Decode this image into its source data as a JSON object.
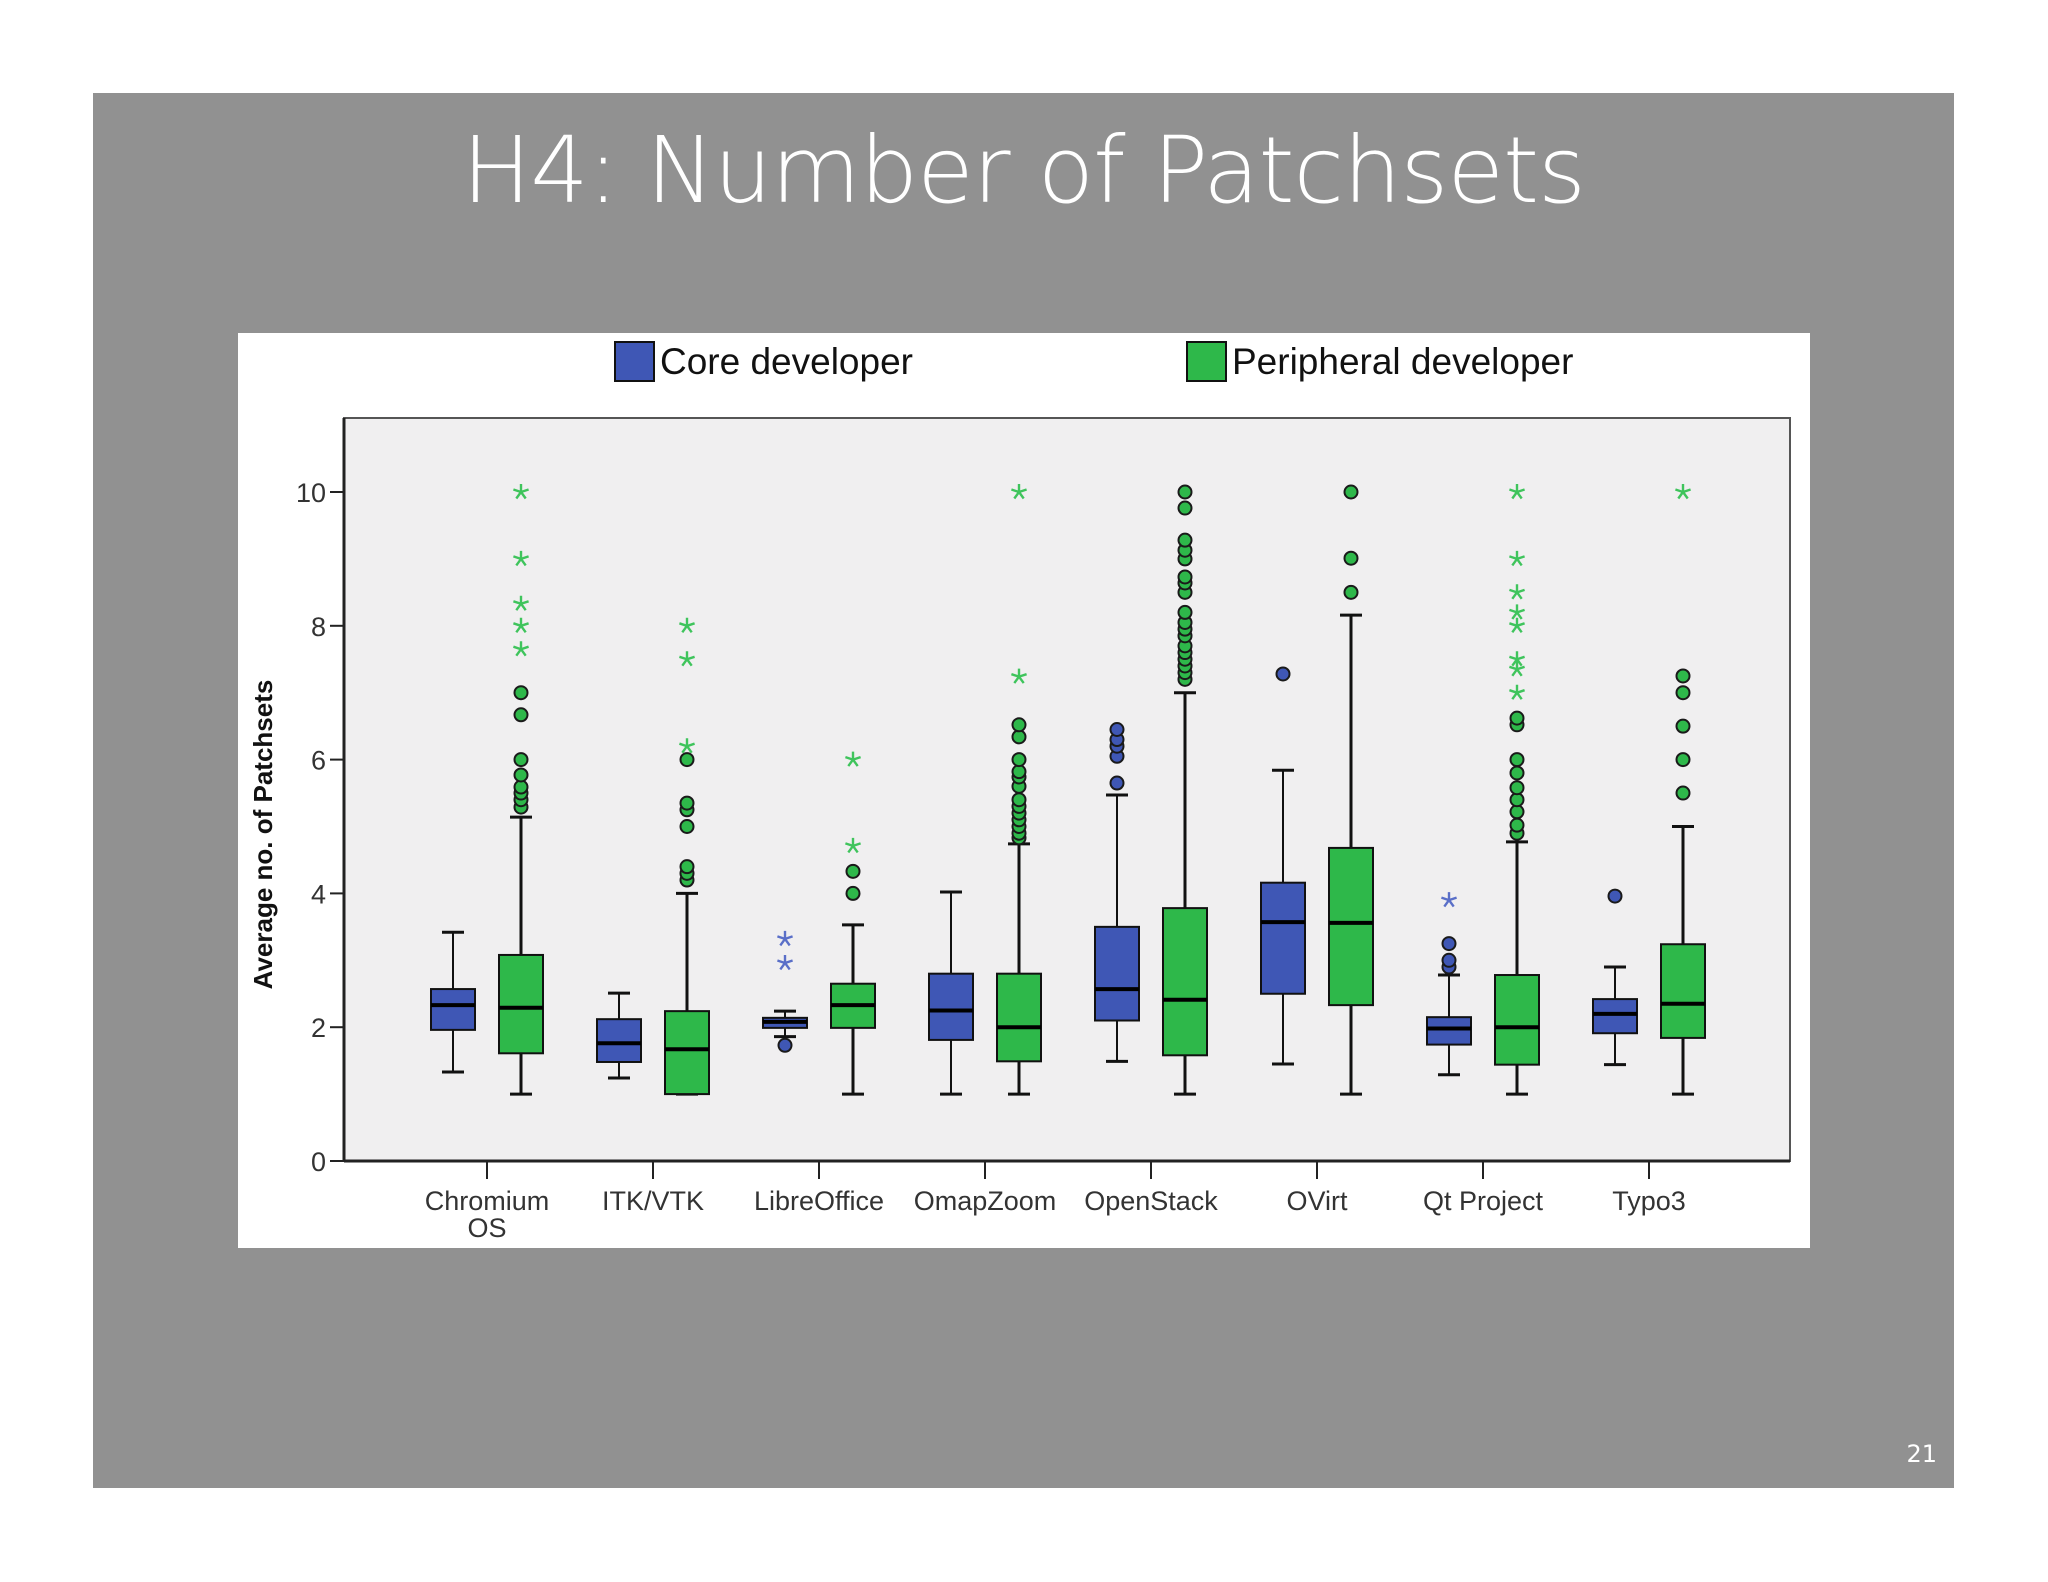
{
  "slide": {
    "title": "H4: Number of Patchsets",
    "number": "21"
  },
  "colors": {
    "slide_bg": "#919191",
    "core": "#3F57B5",
    "peripheral": "#2EB84A",
    "plot_bg": "#F0EFF0"
  },
  "chart_data": {
    "type": "boxplot",
    "title": "",
    "xlabel": "",
    "ylabel": "Average no. of Patchsets",
    "ylim": [
      0,
      11
    ],
    "yticks": [
      0,
      2,
      4,
      6,
      8,
      10
    ],
    "legend": [
      "Core developer",
      "Peripheral developer"
    ],
    "legend_position": "top",
    "grid": false,
    "categories": [
      "Chromium OS",
      "ITK/VTK",
      "LibreOffice",
      "OmapZoom",
      "OpenStack",
      "OVirt",
      "Qt Project",
      "Typo3"
    ],
    "series": [
      {
        "name": "Core developer",
        "color": "#3F57B5",
        "boxes": [
          {
            "whisker_low": 1.33,
            "q1": 1.96,
            "median": 2.33,
            "q3": 2.57,
            "whisker_high": 3.42,
            "outliers": [],
            "extremes": []
          },
          {
            "whisker_low": 1.24,
            "q1": 1.48,
            "median": 1.76,
            "q3": 2.12,
            "whisker_high": 2.51,
            "outliers": [],
            "extremes": []
          },
          {
            "whisker_low": 1.86,
            "q1": 1.99,
            "median": 2.08,
            "q3": 2.14,
            "whisker_high": 2.24,
            "outliers": [
              1.73
            ],
            "extremes": [
              2.96,
              3.32
            ]
          },
          {
            "whisker_low": 1.0,
            "q1": 1.81,
            "median": 2.25,
            "q3": 2.8,
            "whisker_high": 4.02,
            "outliers": [],
            "extremes": []
          },
          {
            "whisker_low": 1.49,
            "q1": 2.1,
            "median": 2.57,
            "q3": 3.5,
            "whisker_high": 5.47,
            "outliers": [
              5.65,
              6.05,
              6.2,
              6.3,
              6.45
            ],
            "extremes": []
          },
          {
            "whisker_low": 1.45,
            "q1": 2.5,
            "median": 3.57,
            "q3": 4.16,
            "whisker_high": 5.84,
            "outliers": [
              7.28
            ],
            "extremes": []
          },
          {
            "whisker_low": 1.29,
            "q1": 1.74,
            "median": 1.98,
            "q3": 2.15,
            "whisker_high": 2.78,
            "outliers": [
              2.9,
              3.0,
              3.25
            ],
            "extremes": [
              3.9
            ]
          },
          {
            "whisker_low": 1.44,
            "q1": 1.91,
            "median": 2.2,
            "q3": 2.42,
            "whisker_high": 2.9,
            "outliers": [
              3.96
            ],
            "extremes": []
          }
        ]
      },
      {
        "name": "Peripheral developer",
        "color": "#2EB84A",
        "boxes": [
          {
            "whisker_low": 1.0,
            "q1": 1.61,
            "median": 2.29,
            "q3": 3.08,
            "whisker_high": 5.14,
            "outliers": [
              5.29,
              5.4,
              5.5,
              5.59,
              5.77,
              6.0,
              6.67,
              7.0
            ],
            "extremes": [
              7.65,
              8.0,
              8.33,
              9.0,
              10.0
            ]
          },
          {
            "whisker_low": 1.0,
            "q1": 1.0,
            "median": 1.67,
            "q3": 2.24,
            "whisker_high": 4.0,
            "outliers": [
              4.2,
              4.3,
              4.4,
              5.0,
              5.25,
              5.35,
              6.0
            ],
            "extremes": [
              6.2,
              7.5,
              8.0
            ]
          },
          {
            "whisker_low": 1.0,
            "q1": 1.99,
            "median": 2.33,
            "q3": 2.65,
            "whisker_high": 3.53,
            "outliers": [
              4.0,
              4.33
            ],
            "extremes": [
              4.71,
              6.0
            ]
          },
          {
            "whisker_low": 1.0,
            "q1": 1.49,
            "median": 2.0,
            "q3": 2.8,
            "whisker_high": 4.74,
            "outliers": [
              4.83,
              4.9,
              5.0,
              5.1,
              5.2,
              5.3,
              5.4,
              5.6,
              5.74,
              5.82,
              6.0,
              6.34,
              6.52
            ],
            "extremes": [
              7.24,
              10.0
            ]
          },
          {
            "whisker_low": 1.0,
            "q1": 1.58,
            "median": 2.41,
            "q3": 3.78,
            "whisker_high": 7.0,
            "outliers": [
              7.2,
              7.3,
              7.4,
              7.5,
              7.6,
              7.7,
              7.85,
              7.95,
              8.05,
              8.2,
              8.5,
              8.64,
              8.73,
              9.0,
              9.13,
              9.28,
              9.76,
              10.0
            ],
            "extremes": []
          },
          {
            "whisker_low": 1.0,
            "q1": 2.33,
            "median": 3.56,
            "q3": 4.68,
            "whisker_high": 8.16,
            "outliers": [
              8.5,
              9.01,
              10.0
            ],
            "extremes": []
          },
          {
            "whisker_low": 1.0,
            "q1": 1.44,
            "median": 2.0,
            "q3": 2.78,
            "whisker_high": 4.77,
            "outliers": [
              4.9,
              5.02,
              5.22,
              5.4,
              5.58,
              5.8,
              6.0,
              6.52,
              6.62
            ],
            "extremes": [
              7.0,
              7.35,
              7.5,
              8.0,
              8.2,
              8.5,
              9.0,
              10.0
            ]
          },
          {
            "whisker_low": 1.0,
            "q1": 1.84,
            "median": 2.35,
            "q3": 3.24,
            "whisker_high": 5.0,
            "outliers": [
              5.5,
              6.0,
              6.5,
              7.0,
              7.25
            ],
            "extremes": [
              10.0
            ]
          }
        ]
      }
    ],
    "markers": {
      "outliers": "circle",
      "extremes": "star"
    }
  }
}
